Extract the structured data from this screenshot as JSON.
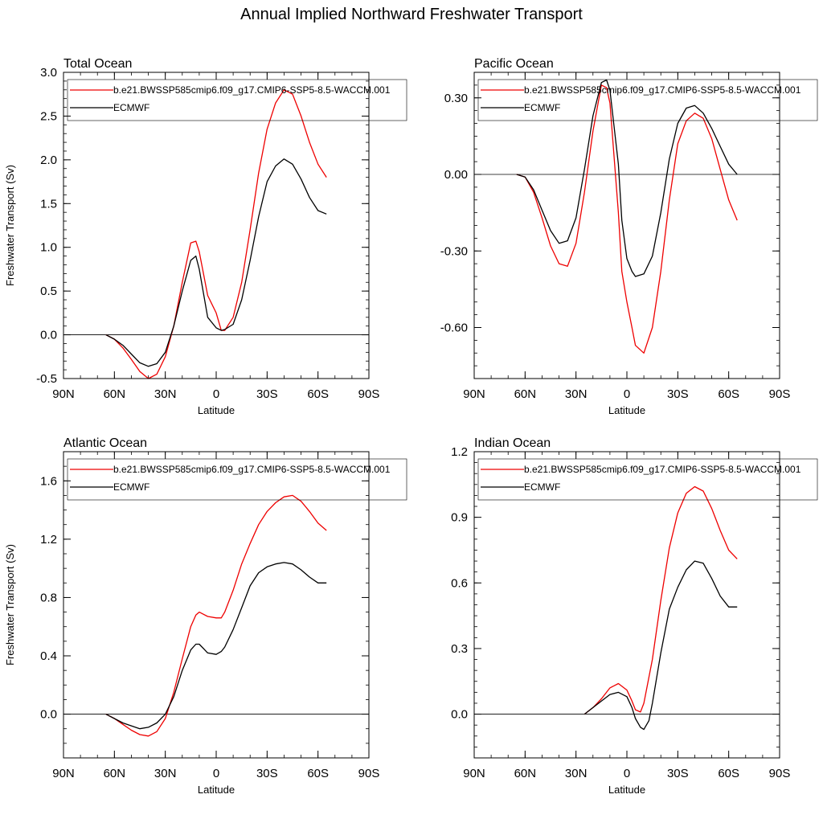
{
  "title": "Annual Implied Northward Freshwater Transport",
  "colors": {
    "model": "#ee0000",
    "obs": "#000000"
  },
  "x_ticks": [
    {
      "v": 90,
      "label": "90N"
    },
    {
      "v": 60,
      "label": "60N"
    },
    {
      "v": 30,
      "label": "30N"
    },
    {
      "v": 0,
      "label": "0"
    },
    {
      "v": -30,
      "label": "30S"
    },
    {
      "v": -60,
      "label": "60S"
    },
    {
      "v": -90,
      "label": "90S"
    }
  ],
  "chart_data": [
    {
      "type": "line",
      "title": "Total Ocean",
      "xlabel": "Latitude",
      "ylabel": "Freshwater Transport (Sv)",
      "xlim": [
        90,
        -90
      ],
      "ylim": [
        -0.5,
        3.0
      ],
      "yticks": [
        -0.5,
        0.0,
        0.5,
        1.0,
        1.5,
        2.0,
        2.5,
        3.0
      ],
      "yticklabels": [
        "-0.5",
        "0.0",
        "0.5",
        "1.0",
        "1.5",
        "2.0",
        "2.5",
        "3.0"
      ],
      "yminor": 0.1,
      "legend": "top",
      "series": [
        {
          "name": "b.e21.BWSSP585cmip6.f09_g17.CMIP6-SSP5-8.5-WACCM.001",
          "color": "#ee0000",
          "x": [
            65,
            60,
            55,
            50,
            45,
            40,
            35,
            30,
            25,
            20,
            15,
            12,
            10,
            5,
            0,
            -3,
            -5,
            -10,
            -15,
            -20,
            -25,
            -30,
            -35,
            -40,
            -45,
            -50,
            -55,
            -60,
            -65
          ],
          "y": [
            0.0,
            -0.05,
            -0.15,
            -0.28,
            -0.42,
            -0.5,
            -0.45,
            -0.25,
            0.1,
            0.6,
            1.05,
            1.07,
            0.95,
            0.45,
            0.25,
            0.05,
            0.05,
            0.2,
            0.6,
            1.2,
            1.85,
            2.35,
            2.65,
            2.8,
            2.75,
            2.5,
            2.2,
            1.95,
            1.8
          ]
        },
        {
          "name": "ECMWF",
          "color": "#000000",
          "x": [
            65,
            60,
            55,
            50,
            45,
            40,
            35,
            30,
            25,
            20,
            15,
            12,
            10,
            5,
            0,
            -3,
            -5,
            -10,
            -15,
            -20,
            -25,
            -30,
            -35,
            -40,
            -45,
            -50,
            -55,
            -60,
            -65
          ],
          "y": [
            0.0,
            -0.05,
            -0.12,
            -0.22,
            -0.32,
            -0.36,
            -0.33,
            -0.2,
            0.1,
            0.5,
            0.85,
            0.9,
            0.75,
            0.2,
            0.08,
            0.05,
            0.06,
            0.12,
            0.4,
            0.85,
            1.35,
            1.75,
            1.93,
            2.01,
            1.95,
            1.78,
            1.57,
            1.42,
            1.38
          ]
        }
      ]
    },
    {
      "type": "line",
      "title": "Pacific Ocean",
      "xlabel": "Latitude",
      "ylabel": "",
      "xlim": [
        90,
        -90
      ],
      "ylim": [
        -0.8,
        0.4
      ],
      "yticks": [
        -0.6,
        -0.3,
        0.0,
        0.3
      ],
      "yticklabels": [
        "-0.60",
        "-0.30",
        "0.00",
        "0.30"
      ],
      "yminor": 0.05,
      "legend": "top",
      "series": [
        {
          "name": "b.e21.BWSSP585cmip6.f09_g17.CMIP6-SSP5-8.5-WACCM.001",
          "color": "#ee0000",
          "x": [
            65,
            60,
            55,
            50,
            45,
            40,
            35,
            30,
            25,
            20,
            15,
            12,
            10,
            5,
            3,
            0,
            -3,
            -5,
            -10,
            -15,
            -20,
            -25,
            -30,
            -35,
            -40,
            -45,
            -50,
            -55,
            -60,
            -65
          ],
          "y": [
            0.0,
            -0.01,
            -0.07,
            -0.17,
            -0.28,
            -0.35,
            -0.36,
            -0.27,
            -0.07,
            0.17,
            0.35,
            0.34,
            0.28,
            -0.15,
            -0.38,
            -0.5,
            -0.6,
            -0.67,
            -0.7,
            -0.6,
            -0.38,
            -0.1,
            0.12,
            0.21,
            0.24,
            0.22,
            0.14,
            0.02,
            -0.1,
            -0.18
          ]
        },
        {
          "name": "ECMWF",
          "color": "#000000",
          "x": [
            65,
            60,
            55,
            50,
            45,
            40,
            35,
            30,
            25,
            20,
            15,
            12,
            10,
            5,
            3,
            0,
            -3,
            -5,
            -10,
            -15,
            -20,
            -25,
            -30,
            -35,
            -40,
            -45,
            -50,
            -55,
            -60,
            -65
          ],
          "y": [
            0.0,
            -0.01,
            -0.06,
            -0.14,
            -0.22,
            -0.27,
            -0.26,
            -0.17,
            0.02,
            0.23,
            0.36,
            0.37,
            0.33,
            0.04,
            -0.18,
            -0.33,
            -0.38,
            -0.4,
            -0.39,
            -0.32,
            -0.15,
            0.06,
            0.2,
            0.26,
            0.27,
            0.24,
            0.18,
            0.11,
            0.04,
            0.0
          ]
        }
      ]
    },
    {
      "type": "line",
      "title": "Atlantic Ocean",
      "xlabel": "Latitude",
      "ylabel": "Freshwater Transport (Sv)",
      "xlim": [
        90,
        -90
      ],
      "ylim": [
        -0.3,
        1.8
      ],
      "yticks": [
        0.0,
        0.4,
        0.8,
        1.2,
        1.6
      ],
      "yticklabels": [
        "0.0",
        "0.4",
        "0.8",
        "1.2",
        "1.6"
      ],
      "yminor": 0.1,
      "legend": "top",
      "series": [
        {
          "name": "b.e21.BWSSP585cmip6.f09_g17.CMIP6-SSP5-8.5-WACCM.001",
          "color": "#ee0000",
          "x": [
            65,
            60,
            55,
            50,
            45,
            40,
            35,
            30,
            25,
            20,
            15,
            12,
            10,
            5,
            0,
            -3,
            -5,
            -10,
            -15,
            -20,
            -25,
            -30,
            -35,
            -40,
            -45,
            -50,
            -55,
            -60,
            -65
          ],
          "y": [
            0.0,
            -0.03,
            -0.07,
            -0.11,
            -0.14,
            -0.15,
            -0.12,
            -0.03,
            0.15,
            0.38,
            0.6,
            0.68,
            0.7,
            0.67,
            0.66,
            0.66,
            0.7,
            0.85,
            1.03,
            1.17,
            1.3,
            1.39,
            1.45,
            1.49,
            1.5,
            1.46,
            1.39,
            1.31,
            1.26
          ]
        },
        {
          "name": "ECMWF",
          "color": "#000000",
          "x": [
            65,
            60,
            55,
            50,
            45,
            40,
            35,
            30,
            25,
            20,
            15,
            12,
            10,
            5,
            0,
            -3,
            -5,
            -10,
            -15,
            -20,
            -25,
            -30,
            -35,
            -40,
            -45,
            -50,
            -55,
            -60,
            -65
          ],
          "y": [
            0.0,
            -0.03,
            -0.06,
            -0.08,
            -0.1,
            -0.09,
            -0.06,
            0.0,
            0.12,
            0.3,
            0.44,
            0.48,
            0.48,
            0.42,
            0.41,
            0.43,
            0.46,
            0.58,
            0.73,
            0.88,
            0.97,
            1.01,
            1.03,
            1.04,
            1.03,
            0.99,
            0.94,
            0.9,
            0.9
          ]
        }
      ]
    },
    {
      "type": "line",
      "title": "Indian Ocean",
      "xlabel": "Latitude",
      "ylabel": "",
      "xlim": [
        90,
        -90
      ],
      "ylim": [
        -0.2,
        1.2
      ],
      "yticks": [
        0.0,
        0.3,
        0.6,
        0.9,
        1.2
      ],
      "yticklabels": [
        "0.0",
        "0.3",
        "0.6",
        "0.9",
        "1.2"
      ],
      "yminor": 0.05,
      "legend": "top",
      "series": [
        {
          "name": "b.e21.BWSSP585cmip6.f09_g17.CMIP6-SSP5-8.5-WACCM.001",
          "color": "#ee0000",
          "x": [
            25,
            20,
            15,
            10,
            5,
            0,
            -3,
            -5,
            -8,
            -10,
            -15,
            -20,
            -25,
            -30,
            -35,
            -40,
            -45,
            -50,
            -55,
            -60,
            -65
          ],
          "y": [
            0.0,
            0.03,
            0.07,
            0.12,
            0.14,
            0.11,
            0.06,
            0.02,
            0.01,
            0.05,
            0.25,
            0.52,
            0.76,
            0.92,
            1.01,
            1.04,
            1.02,
            0.94,
            0.84,
            0.75,
            0.71
          ]
        },
        {
          "name": "ECMWF",
          "color": "#000000",
          "x": [
            25,
            20,
            15,
            10,
            5,
            0,
            -3,
            -5,
            -8,
            -10,
            -13,
            -15,
            -20,
            -25,
            -30,
            -35,
            -40,
            -45,
            -50,
            -55,
            -60,
            -65
          ],
          "y": [
            0.0,
            0.03,
            0.06,
            0.09,
            0.1,
            0.08,
            0.03,
            -0.02,
            -0.06,
            -0.07,
            -0.03,
            0.05,
            0.28,
            0.48,
            0.58,
            0.66,
            0.7,
            0.69,
            0.62,
            0.54,
            0.49,
            0.49
          ]
        }
      ]
    }
  ]
}
